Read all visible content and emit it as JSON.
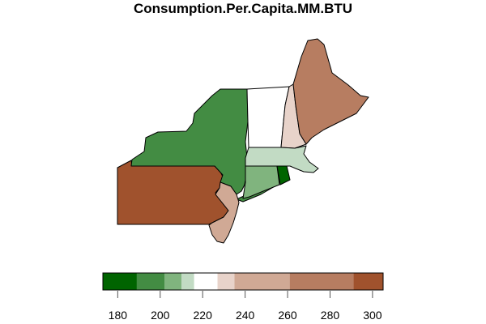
{
  "chart_data": {
    "type": "choropleth",
    "title": "Consumption.Per.Capita.MM.BTU",
    "legend": {
      "breaks": [
        173,
        189,
        202,
        210,
        216,
        227,
        235,
        261,
        291,
        305
      ],
      "colors": [
        "#006400",
        "#438c43",
        "#80b47e",
        "#c2dbc4",
        "#ffffff",
        "#e8d3ca",
        "#d0a995",
        "#b77d61",
        "#a0522d"
      ],
      "ticks": [
        "180",
        "200",
        "220",
        "240",
        "260",
        "280",
        "300"
      ],
      "tick_values": [
        180,
        200,
        220,
        240,
        260,
        280,
        300
      ],
      "placement": "bottom"
    },
    "regions": [
      {
        "id": "PA",
        "bin": 8
      },
      {
        "id": "NY",
        "bin": 1
      },
      {
        "id": "NJ",
        "bin": 6
      },
      {
        "id": "VT",
        "bin": 4
      },
      {
        "id": "NH",
        "bin": 5
      },
      {
        "id": "ME",
        "bin": 7
      },
      {
        "id": "MA",
        "bin": 3
      },
      {
        "id": "CT",
        "bin": 2
      },
      {
        "id": "RI",
        "bin": 0
      }
    ]
  }
}
